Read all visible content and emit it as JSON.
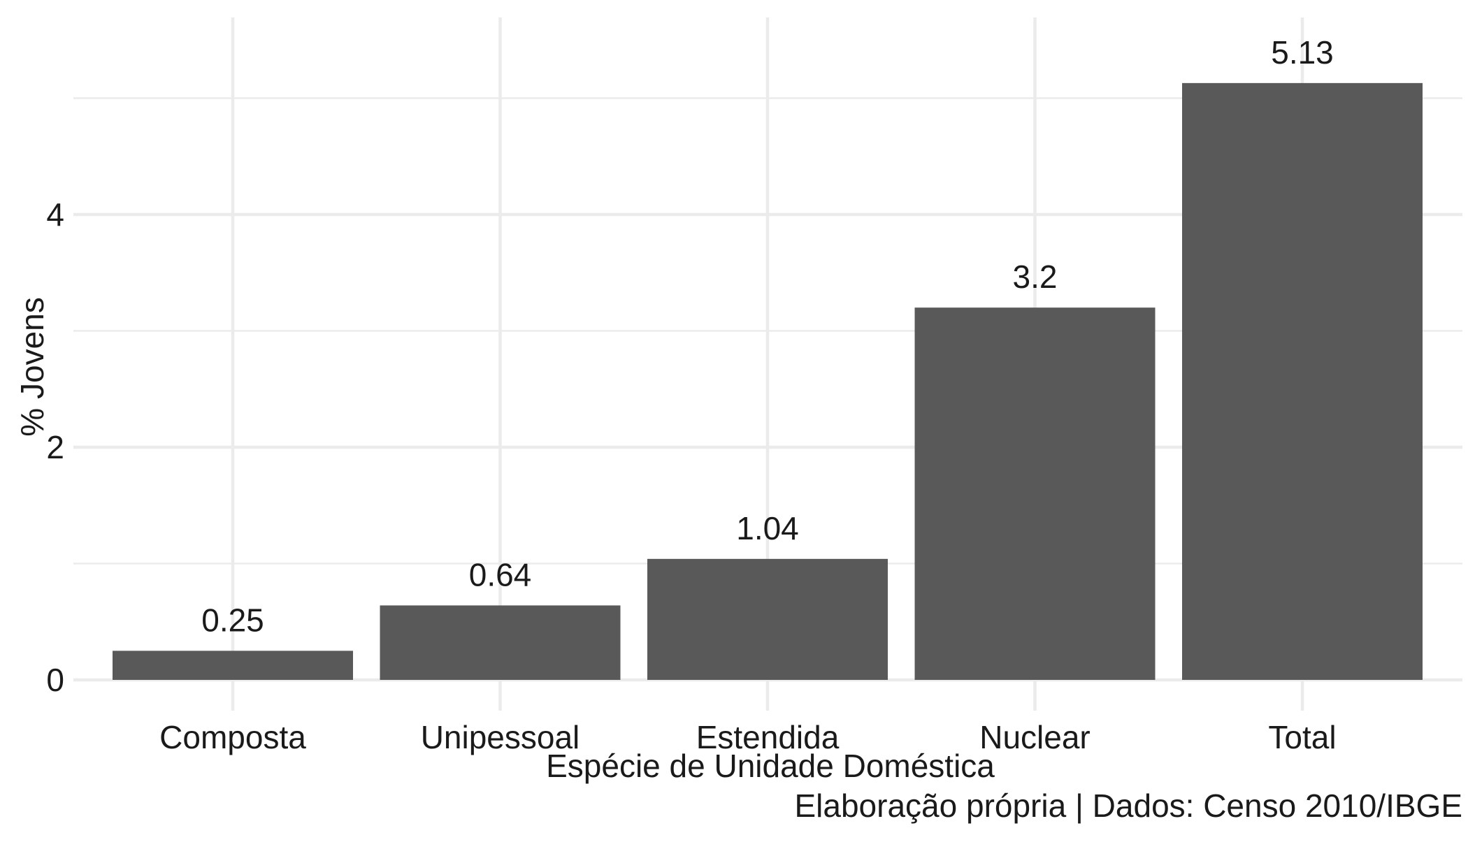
{
  "chart_data": {
    "type": "bar",
    "categories": [
      "Composta",
      "Unipessoal",
      "Estendida",
      "Nuclear",
      "Total"
    ],
    "values": [
      0.25,
      0.64,
      1.04,
      3.2,
      5.13
    ],
    "value_labels": [
      "0.25",
      "0.64",
      "1.04",
      "3.2",
      "5.13"
    ],
    "title": "",
    "xlabel": "Espécie de Unidade Doméstica",
    "ylabel": "% Jovens",
    "caption": "Elaboração própria | Dados: Censo 2010/IBGE",
    "ylim": [
      0,
      5.6
    ],
    "y_ticks": [
      0,
      2,
      4
    ],
    "y_tick_labels": [
      "0",
      "2",
      "4"
    ],
    "y_minor_ticks": [
      1,
      3,
      5
    ],
    "grid": true,
    "legend": "none",
    "colors": {
      "bar": "#595959",
      "grid": "#ebebeb",
      "text": "#1a1a1a",
      "background": "#ffffff"
    }
  }
}
